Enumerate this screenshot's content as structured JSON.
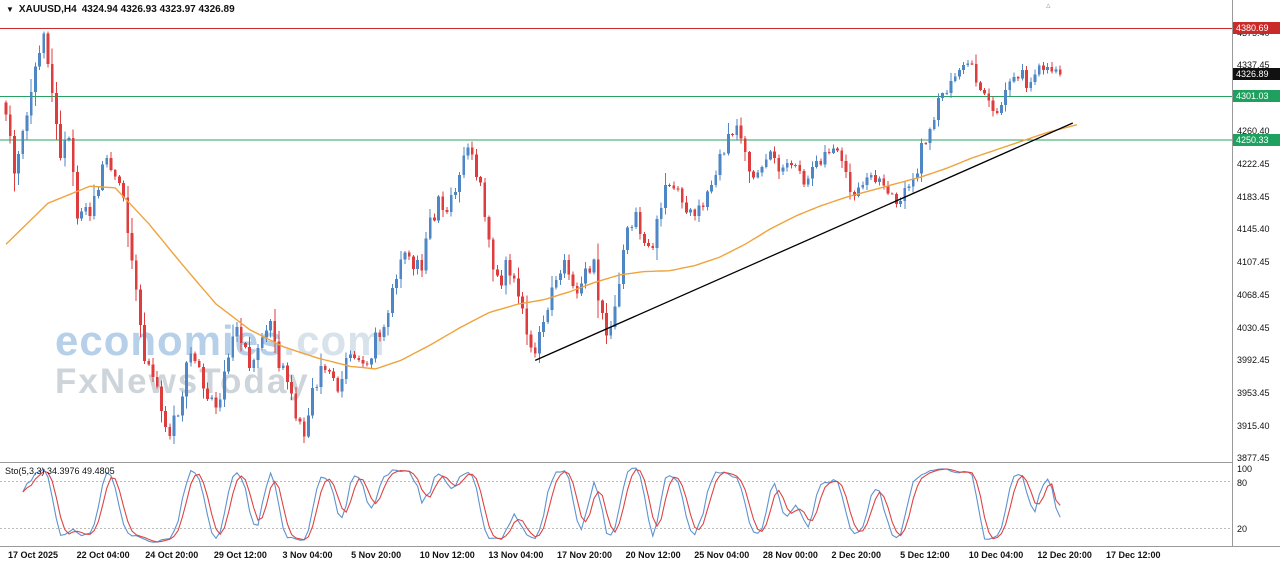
{
  "colors": {
    "up": "#4e86c6",
    "down": "#de3d3d",
    "ma": "#efa33d",
    "trendline": "#000000",
    "resistance_line": "#c92a2a",
    "support_line": "#27a35f",
    "badge_resistance_bg": "#c92a2a",
    "badge_support_bg": "#1fa05f",
    "badge_current_bg": "#111111",
    "stoch_main": "#5e93cf",
    "stoch_signal": "#dd4444",
    "watermark_brand": "#b5d0e8",
    "watermark_suffix": "#d8e2ea",
    "watermark_tagline": "#cdd5db",
    "axis_text": "#111111",
    "separator": "#9a9a9a"
  },
  "icons": {
    "symbol_dropdown": "▼",
    "chart_shift": "▵"
  },
  "header": {
    "symbol": "XAUUSD,H4",
    "ohlc": "4324.94 4326.93 4323.97 4326.89"
  },
  "watermark": {
    "brand": "economies",
    "brand_suffix": ".com",
    "tagline": "FxNewsToday"
  },
  "price_axis": {
    "ticks": [
      "4375.40",
      "4337.45",
      "4260.40",
      "4222.45",
      "4183.45",
      "4145.40",
      "4107.45",
      "4068.45",
      "4030.45",
      "3992.45",
      "3953.45",
      "3915.40",
      "3877.45"
    ],
    "badges": [
      {
        "value": "4380.69",
        "type": "resistance"
      },
      {
        "value": "4326.89",
        "type": "current"
      },
      {
        "value": "4301.03",
        "type": "support"
      },
      {
        "value": "4250.33",
        "type": "support"
      }
    ]
  },
  "time_axis": [
    "17 Oct 2025",
    "22 Oct 04:00",
    "24 Oct 20:00",
    "29 Oct 12:00",
    "3 Nov 04:00",
    "5 Nov 20:00",
    "10 Nov 12:00",
    "13 Nov 04:00",
    "17 Nov 20:00",
    "20 Nov 12:00",
    "25 Nov 04:00",
    "28 Nov 00:00",
    "2 Dec 20:00",
    "5 Dec 12:00",
    "10 Dec 04:00",
    "12 Dec 20:00",
    "17 Dec 12:00"
  ],
  "indicator_panel": {
    "label": "Sto(5,3,3) 34.3976 49.4805",
    "scale": [
      "100",
      "80",
      "20"
    ]
  },
  "chart_data": {
    "type": "candlestick",
    "symbol": "XAUUSD",
    "timeframe": "H4",
    "current": {
      "open": 4324.94,
      "high": 4326.93,
      "low": 4323.97,
      "close": 4326.89
    },
    "bars": 252,
    "y_axis": {
      "top_price": 4414,
      "bottom_price": 3873,
      "tick_values": [
        4375.4,
        4337.45,
        4260.4,
        4222.45,
        4183.45,
        4145.4,
        4107.45,
        4068.45,
        4030.45,
        3992.45,
        3953.45,
        3915.4,
        3877.45
      ]
    },
    "levels": {
      "resistance": 4380.69,
      "current_price": 4326.89,
      "supports": [
        4301.03,
        4250.33
      ]
    },
    "extremes": {
      "period_high": 4376,
      "period_low": 3877.45
    },
    "close_keyframes": [
      [
        0,
        4282
      ],
      [
        2,
        4212
      ],
      [
        4,
        4262
      ],
      [
        7,
        4330
      ],
      [
        9,
        4372
      ],
      [
        11,
        4300
      ],
      [
        13,
        4238
      ],
      [
        15,
        4264
      ],
      [
        17,
        4155
      ],
      [
        20,
        4168
      ],
      [
        24,
        4228
      ],
      [
        27,
        4198
      ],
      [
        30,
        4120
      ],
      [
        33,
        3995
      ],
      [
        36,
        3955
      ],
      [
        39,
        3902
      ],
      [
        42,
        3948
      ],
      [
        44,
        4008
      ],
      [
        47,
        3968
      ],
      [
        50,
        3938
      ],
      [
        53,
        3998
      ],
      [
        55,
        4030
      ],
      [
        58,
        3988
      ],
      [
        61,
        4012
      ],
      [
        63,
        4032
      ],
      [
        65,
        3992
      ],
      [
        67,
        3962
      ],
      [
        69,
        3928
      ],
      [
        71,
        3906
      ],
      [
        73,
        3952
      ],
      [
        75,
        3992
      ],
      [
        77,
        3972
      ],
      [
        79,
        3962
      ],
      [
        81,
        3988
      ],
      [
        83,
        3998
      ],
      [
        85,
        3986
      ],
      [
        87,
        4002
      ],
      [
        90,
        4042
      ],
      [
        93,
        4088
      ],
      [
        95,
        4122
      ],
      [
        97,
        4098
      ],
      [
        99,
        4108
      ],
      [
        101,
        4148
      ],
      [
        103,
        4178
      ],
      [
        105,
        4162
      ],
      [
        107,
        4198
      ],
      [
        109,
        4225
      ],
      [
        110,
        4242
      ],
      [
        112,
        4215
      ],
      [
        113,
        4192
      ],
      [
        115,
        4138
      ],
      [
        116,
        4092
      ],
      [
        118,
        4078
      ],
      [
        119,
        4108
      ],
      [
        121,
        4085
      ],
      [
        123,
        4052
      ],
      [
        126,
        3998
      ],
      [
        128,
        4038
      ],
      [
        130,
        4068
      ],
      [
        132,
        4095
      ],
      [
        133,
        4110
      ],
      [
        135,
        4088
      ],
      [
        136,
        4072
      ],
      [
        138,
        4092
      ],
      [
        140,
        4105
      ],
      [
        141,
        4068
      ],
      [
        143,
        4022
      ],
      [
        145,
        4062
      ],
      [
        146,
        4092
      ],
      [
        148,
        4148
      ],
      [
        150,
        4162
      ],
      [
        152,
        4135
      ],
      [
        154,
        4118
      ],
      [
        156,
        4182
      ],
      [
        158,
        4195
      ],
      [
        160,
        4188
      ],
      [
        162,
        4170
      ],
      [
        164,
        4162
      ],
      [
        166,
        4178
      ],
      [
        168,
        4192
      ],
      [
        170,
        4232
      ],
      [
        172,
        4252
      ],
      [
        174,
        4262
      ],
      [
        176,
        4228
      ],
      [
        178,
        4205
      ],
      [
        180,
        4218
      ],
      [
        182,
        4238
      ],
      [
        184,
        4215
      ],
      [
        186,
        4222
      ],
      [
        188,
        4228
      ],
      [
        190,
        4195
      ],
      [
        192,
        4212
      ],
      [
        194,
        4228
      ],
      [
        196,
        4235
      ],
      [
        198,
        4242
      ],
      [
        200,
        4205
      ],
      [
        202,
        4188
      ],
      [
        204,
        4198
      ],
      [
        206,
        4212
      ],
      [
        208,
        4198
      ],
      [
        210,
        4188
      ],
      [
        212,
        4178
      ],
      [
        214,
        4192
      ],
      [
        216,
        4205
      ],
      [
        218,
        4238
      ],
      [
        220,
        4262
      ],
      [
        222,
        4292
      ],
      [
        224,
        4312
      ],
      [
        226,
        4322
      ],
      [
        228,
        4338
      ],
      [
        230,
        4342
      ],
      [
        232,
        4312
      ],
      [
        234,
        4290
      ],
      [
        236,
        4280
      ],
      [
        238,
        4302
      ],
      [
        240,
        4322
      ],
      [
        242,
        4330
      ],
      [
        243,
        4308
      ],
      [
        245,
        4322
      ],
      [
        247,
        4338
      ],
      [
        249,
        4336
      ],
      [
        250,
        4330
      ],
      [
        251,
        4326.89
      ]
    ],
    "ma_keyframes": [
      [
        0,
        4128
      ],
      [
        10,
        4176
      ],
      [
        20,
        4196
      ],
      [
        26,
        4194
      ],
      [
        34,
        4152
      ],
      [
        42,
        4104
      ],
      [
        50,
        4058
      ],
      [
        58,
        4028
      ],
      [
        66,
        4008
      ],
      [
        74,
        3995
      ],
      [
        82,
        3985
      ],
      [
        88,
        3982
      ],
      [
        94,
        3992
      ],
      [
        101,
        4010
      ],
      [
        108,
        4030
      ],
      [
        115,
        4048
      ],
      [
        122,
        4058
      ],
      [
        128,
        4063
      ],
      [
        134,
        4072
      ],
      [
        140,
        4083
      ],
      [
        146,
        4092
      ],
      [
        152,
        4096
      ],
      [
        158,
        4097
      ],
      [
        164,
        4103
      ],
      [
        170,
        4113
      ],
      [
        176,
        4128
      ],
      [
        182,
        4146
      ],
      [
        188,
        4161
      ],
      [
        194,
        4173
      ],
      [
        200,
        4183
      ],
      [
        206,
        4191
      ],
      [
        212,
        4199
      ],
      [
        218,
        4207
      ],
      [
        224,
        4217
      ],
      [
        230,
        4229
      ],
      [
        236,
        4239
      ],
      [
        242,
        4249
      ],
      [
        248,
        4259
      ],
      [
        255,
        4268
      ]
    ],
    "trendline": {
      "from_bar": 126,
      "from_price": 3992,
      "to_bar": 254,
      "to_price": 4270
    },
    "stochastic": {
      "settings": "5,3,3",
      "current_main": 34.3976,
      "current_signal": 49.4805,
      "range": [
        0,
        100
      ],
      "levels": [
        80,
        20
      ]
    }
  }
}
